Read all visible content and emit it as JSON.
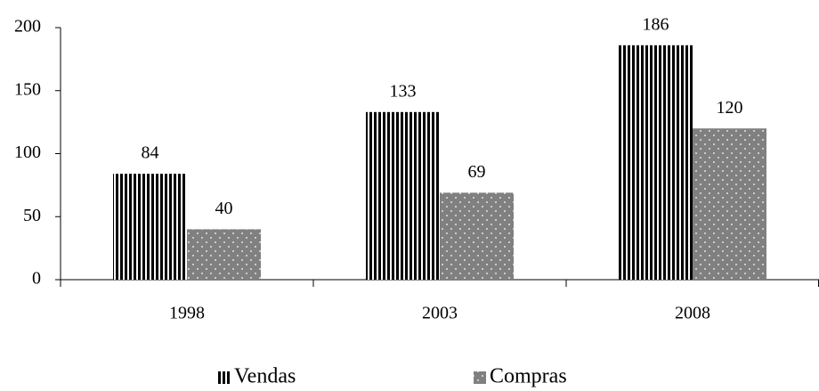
{
  "chart_data": {
    "type": "bar",
    "categories": [
      "1998",
      "2003",
      "2008"
    ],
    "series": [
      {
        "name": "Vendas",
        "color": "#000000",
        "values": [
          84,
          133,
          186
        ]
      },
      {
        "name": "Compras",
        "color": "#808080",
        "values": [
          40,
          69,
          120
        ]
      }
    ],
    "ylim": [
      0,
      200
    ],
    "yticks": [
      0,
      50,
      100,
      150,
      200
    ],
    "grid": false,
    "legend": "bottom"
  }
}
